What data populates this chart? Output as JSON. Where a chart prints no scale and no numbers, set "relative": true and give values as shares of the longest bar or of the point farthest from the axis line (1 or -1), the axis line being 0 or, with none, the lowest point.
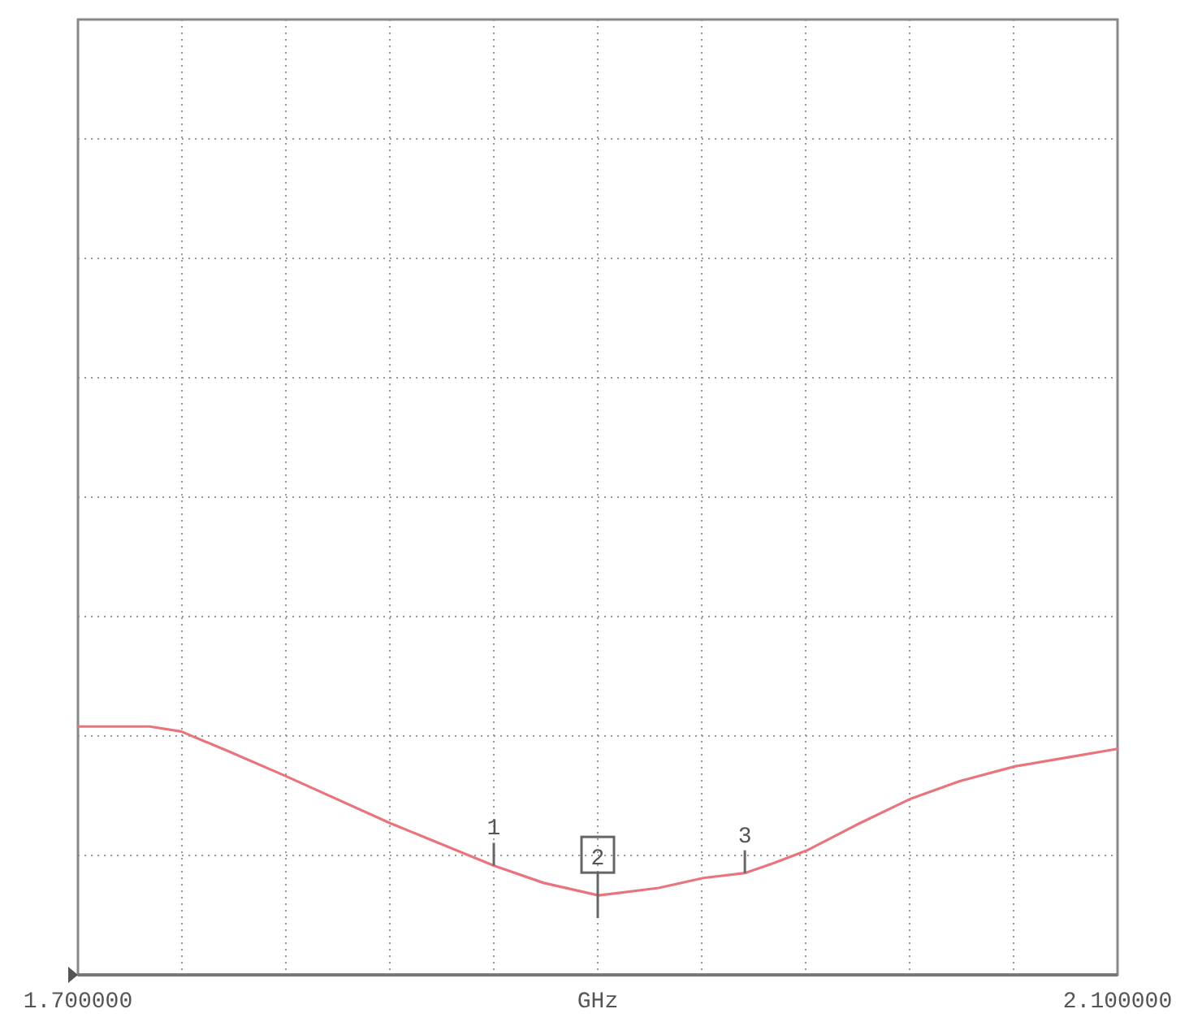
{
  "chart_data": {
    "type": "line",
    "relative": true,
    "xlabel": "GHz",
    "x": [
      1.7,
      1.7276,
      1.7397,
      1.7579,
      1.78,
      1.8203,
      1.86,
      1.8793,
      1.9003,
      1.9234,
      1.9406,
      1.9566,
      1.9676,
      1.9803,
      2.0007,
      2.0206,
      2.0393,
      2.0608,
      2.0834,
      2.1
    ],
    "series": [
      {
        "color": "#e8757d",
        "values": [
          1,
          1,
          0.98,
          0.9,
          0.8,
          0.61,
          0.44,
          0.37,
          0.32,
          0.35,
          0.39,
          0.41,
          0.45,
          0.5,
          0.61,
          0.71,
          0.78,
          0.84,
          0.88,
          0.91
        ]
      }
    ],
    "xlim": [
      1.7,
      2.1
    ],
    "xticks": [
      {
        "value": 1.7,
        "label": "1.700000"
      },
      {
        "value": 1.74,
        "label": null
      },
      {
        "value": 1.78,
        "label": null
      },
      {
        "value": 1.82,
        "label": null
      },
      {
        "value": 1.86,
        "label": null
      },
      {
        "value": 1.9,
        "label": null
      },
      {
        "value": 1.94,
        "label": null
      },
      {
        "value": 1.98,
        "label": null
      },
      {
        "value": 2.02,
        "label": null
      },
      {
        "value": 2.06,
        "label": null
      },
      {
        "value": 2.1,
        "label": "2.100000"
      }
    ],
    "grid": true,
    "annotations": [
      {
        "text": "1",
        "x": 1.86,
        "y": 0.44
      },
      {
        "text": "2",
        "x": 1.9,
        "y": 0.32
      },
      {
        "text": "3",
        "x": 1.9566,
        "y": 0.41
      }
    ]
  }
}
